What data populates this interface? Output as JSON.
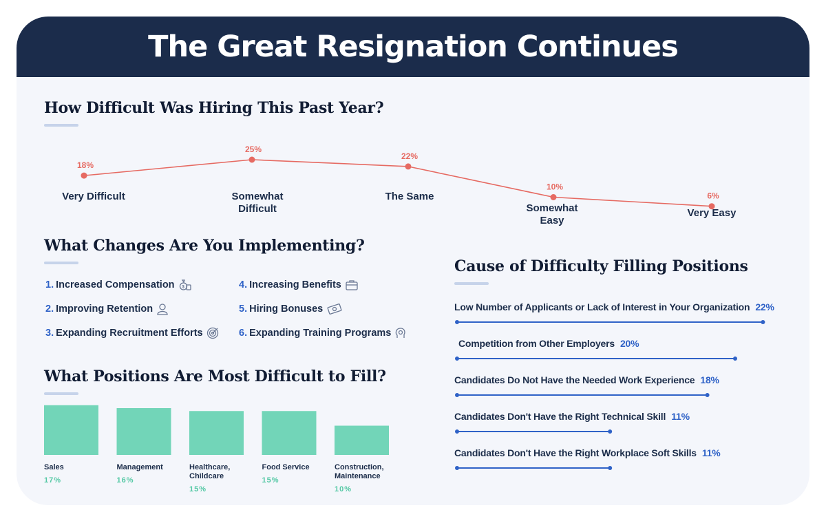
{
  "title": "The Great Resignation Continues",
  "sections": {
    "hiring": "How Difficult Was Hiring This Past Year?",
    "changes": "What Changes Are You Implementing?",
    "positions": "What Positions Are Most Difficult to Fill?",
    "causes": "Cause of Difficulty Filling Positions"
  },
  "changes": [
    {
      "num": "1.",
      "label": "Increased Compensation",
      "icon": "money-bag-icon"
    },
    {
      "num": "2.",
      "label": "Improving Retention",
      "icon": "person-icon"
    },
    {
      "num": "3.",
      "label": "Expanding Recruitment Efforts",
      "icon": "target-icon"
    },
    {
      "num": "4.",
      "label": "Increasing Benefits",
      "icon": "briefcase-icon"
    },
    {
      "num": "5.",
      "label": "Hiring Bonuses",
      "icon": "cash-icon"
    },
    {
      "num": "6.",
      "label": "Expanding Training Programs",
      "icon": "lightbulb-head-icon"
    }
  ],
  "colors": {
    "header": "#1b2c4b",
    "line": "#e66a62",
    "bar": "#72d5b8",
    "accent_blue": "#2f62c7"
  },
  "chart_data": [
    {
      "type": "line",
      "title": "How Difficult Was Hiring This Past Year?",
      "categories": [
        "Very Difficult",
        "Somewhat Difficult",
        "The Same",
        "Somewhat Easy",
        "Very Easy"
      ],
      "values": [
        18,
        25,
        22,
        10,
        6
      ],
      "labels": [
        "18%",
        "25%",
        "22%",
        "10%",
        "6%"
      ],
      "unit": "%"
    },
    {
      "type": "bar",
      "title": "What Positions Are Most Difficult to Fill?",
      "categories": [
        "Sales",
        "Management",
        "Healthcare, Childcare",
        "Food Service",
        "Construction, Maintenance"
      ],
      "category_lines": [
        [
          "Sales"
        ],
        [
          "Management"
        ],
        [
          "Healthcare,",
          "Childcare"
        ],
        [
          "Food Service"
        ],
        [
          "Construction,",
          "Maintenance"
        ]
      ],
      "values": [
        17,
        16,
        15,
        15,
        10
      ],
      "labels": [
        "17%",
        "16%",
        "15%",
        "15%",
        "10%"
      ],
      "unit": "%"
    },
    {
      "type": "bar",
      "orientation": "horizontal",
      "title": "Cause of Difficulty Filling Positions",
      "categories": [
        "Low Number of Applicants or Lack of Interest in Your Organization",
        "Competition from Other Employers",
        "Candidates Do Not Have the Needed Work Experience",
        "Candidates Don't Have the Right Technical Skill",
        "Candidates Don't Have the Right Workplace Soft Skills"
      ],
      "values": [
        22,
        20,
        18,
        11,
        11
      ],
      "labels": [
        "22%",
        "20%",
        "18%",
        "11%",
        "11%"
      ],
      "unit": "%"
    }
  ]
}
